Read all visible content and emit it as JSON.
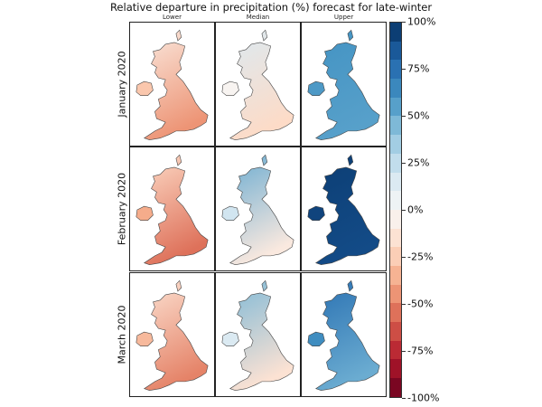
{
  "title": "Relative departure in precipitation (%) forecast for late-winter",
  "chart_data": {
    "type": "heatmap",
    "title": "Relative departure in precipitation (%) forecast for late-winter",
    "columns": [
      "Lower",
      "Median",
      "Upper"
    ],
    "rows": [
      "January 2020",
      "February 2020",
      "March 2020"
    ],
    "panel_dominant_departure_pct": [
      {
        "north": -10,
        "south": -45
      },
      {
        "north": 15,
        "south": -20
      },
      {
        "north": 60,
        "south": 55
      },
      {
        "north": -20,
        "south": -55
      },
      {
        "north": 50,
        "south": -10
      },
      {
        "north": 95,
        "south": 90
      },
      {
        "north": -15,
        "south": -50
      },
      {
        "north": 45,
        "south": -15
      },
      {
        "north": 75,
        "south": 50
      }
    ],
    "colorbar": {
      "range": [
        -100,
        100
      ],
      "step": 10,
      "colormap": "RdBu",
      "ticks": [
        "100%",
        "75%",
        "50%",
        "25%",
        "0%",
        "-25%",
        "-50%",
        "-75%",
        "-100%"
      ]
    }
  }
}
